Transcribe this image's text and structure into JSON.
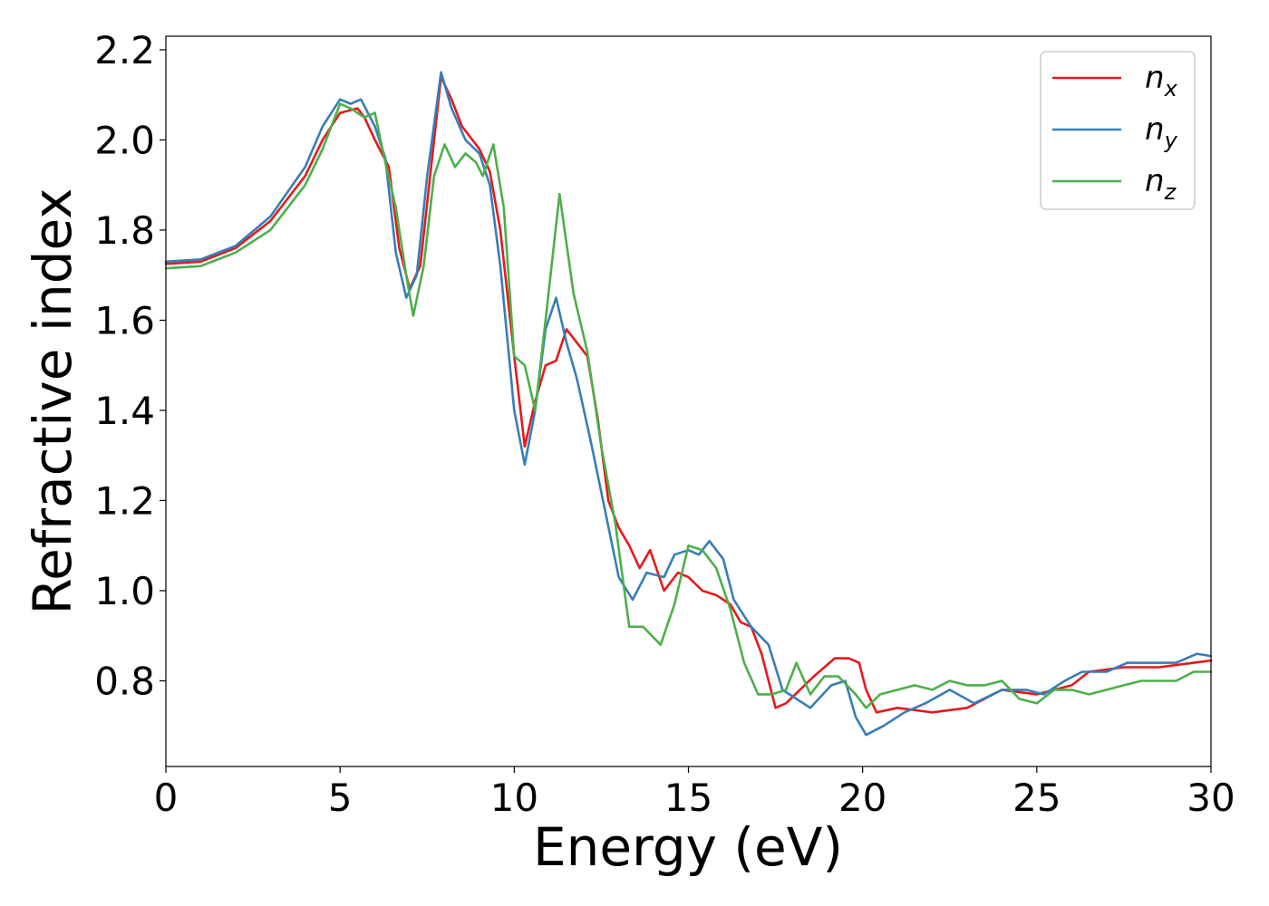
{
  "chart_data": {
    "type": "line",
    "xlabel": "Energy (eV)",
    "ylabel": "Refractive index",
    "xlim": [
      0,
      30
    ],
    "ylim": [
      0.61,
      2.23
    ],
    "xticks": [
      "0",
      "5",
      "10",
      "15",
      "20",
      "25",
      "30"
    ],
    "yticks": [
      "0.8",
      "1.0",
      "1.2",
      "1.4",
      "1.6",
      "1.8",
      "2.0",
      "2.2"
    ],
    "grid": false,
    "legend_position": "top-right",
    "series": [
      {
        "name": "n",
        "subscript": "x",
        "color": "#e41a1c",
        "points": [
          [
            0,
            1.725
          ],
          [
            1,
            1.73
          ],
          [
            2,
            1.76
          ],
          [
            3,
            1.82
          ],
          [
            4,
            1.92
          ],
          [
            4.5,
            2.0
          ],
          [
            5,
            2.06
          ],
          [
            5.5,
            2.07
          ],
          [
            5.7,
            2.05
          ],
          [
            6,
            2.0
          ],
          [
            6.4,
            1.94
          ],
          [
            6.7,
            1.76
          ],
          [
            7,
            1.67
          ],
          [
            7.3,
            1.72
          ],
          [
            7.6,
            1.93
          ],
          [
            7.9,
            2.14
          ],
          [
            8.2,
            2.09
          ],
          [
            8.5,
            2.03
          ],
          [
            9,
            1.98
          ],
          [
            9.3,
            1.93
          ],
          [
            9.6,
            1.8
          ],
          [
            10,
            1.52
          ],
          [
            10.3,
            1.32
          ],
          [
            10.6,
            1.42
          ],
          [
            10.9,
            1.5
          ],
          [
            11.2,
            1.51
          ],
          [
            11.5,
            1.58
          ],
          [
            11.8,
            1.55
          ],
          [
            12.1,
            1.52
          ],
          [
            12.4,
            1.38
          ],
          [
            12.7,
            1.2
          ],
          [
            13,
            1.14
          ],
          [
            13.3,
            1.1
          ],
          [
            13.6,
            1.05
          ],
          [
            13.9,
            1.09
          ],
          [
            14.3,
            1.0
          ],
          [
            14.7,
            1.04
          ],
          [
            15,
            1.03
          ],
          [
            15.4,
            1.0
          ],
          [
            15.8,
            0.99
          ],
          [
            16.2,
            0.97
          ],
          [
            16.5,
            0.93
          ],
          [
            16.8,
            0.92
          ],
          [
            17.1,
            0.86
          ],
          [
            17.5,
            0.74
          ],
          [
            17.8,
            0.75
          ],
          [
            18.2,
            0.78
          ],
          [
            18.6,
            0.81
          ],
          [
            19.2,
            0.85
          ],
          [
            19.6,
            0.85
          ],
          [
            19.9,
            0.84
          ],
          [
            20.1,
            0.78
          ],
          [
            20.4,
            0.73
          ],
          [
            21,
            0.74
          ],
          [
            22,
            0.73
          ],
          [
            23,
            0.74
          ],
          [
            24,
            0.78
          ],
          [
            25,
            0.77
          ],
          [
            26,
            0.79
          ],
          [
            26.5,
            0.82
          ],
          [
            27.5,
            0.83
          ],
          [
            28.5,
            0.83
          ],
          [
            29.5,
            0.84
          ],
          [
            30,
            0.845
          ]
        ]
      },
      {
        "name": "n",
        "subscript": "y",
        "color": "#377eb8",
        "points": [
          [
            0,
            1.73
          ],
          [
            1,
            1.735
          ],
          [
            2,
            1.765
          ],
          [
            3,
            1.83
          ],
          [
            4,
            1.94
          ],
          [
            4.5,
            2.03
          ],
          [
            5,
            2.09
          ],
          [
            5.3,
            2.08
          ],
          [
            5.6,
            2.09
          ],
          [
            6,
            2.03
          ],
          [
            6.3,
            1.96
          ],
          [
            6.6,
            1.75
          ],
          [
            6.9,
            1.65
          ],
          [
            7.2,
            1.7
          ],
          [
            7.5,
            1.92
          ],
          [
            7.9,
            2.15
          ],
          [
            8.2,
            2.07
          ],
          [
            8.6,
            2.0
          ],
          [
            9,
            1.97
          ],
          [
            9.3,
            1.9
          ],
          [
            9.6,
            1.72
          ],
          [
            10,
            1.4
          ],
          [
            10.3,
            1.28
          ],
          [
            10.6,
            1.4
          ],
          [
            10.9,
            1.58
          ],
          [
            11.2,
            1.65
          ],
          [
            11.5,
            1.55
          ],
          [
            11.8,
            1.47
          ],
          [
            12.2,
            1.33
          ],
          [
            12.6,
            1.18
          ],
          [
            13,
            1.03
          ],
          [
            13.4,
            0.98
          ],
          [
            13.8,
            1.04
          ],
          [
            14.3,
            1.03
          ],
          [
            14.6,
            1.08
          ],
          [
            15,
            1.09
          ],
          [
            15.3,
            1.08
          ],
          [
            15.6,
            1.11
          ],
          [
            16,
            1.07
          ],
          [
            16.3,
            0.98
          ],
          [
            16.8,
            0.92
          ],
          [
            17.3,
            0.88
          ],
          [
            17.7,
            0.78
          ],
          [
            18.1,
            0.76
          ],
          [
            18.5,
            0.74
          ],
          [
            19.1,
            0.79
          ],
          [
            19.5,
            0.8
          ],
          [
            19.8,
            0.72
          ],
          [
            20.1,
            0.68
          ],
          [
            20.6,
            0.7
          ],
          [
            21.2,
            0.73
          ],
          [
            21.8,
            0.75
          ],
          [
            22.5,
            0.78
          ],
          [
            23.2,
            0.75
          ],
          [
            24,
            0.78
          ],
          [
            24.7,
            0.78
          ],
          [
            25.2,
            0.77
          ],
          [
            25.8,
            0.8
          ],
          [
            26.3,
            0.82
          ],
          [
            27,
            0.82
          ],
          [
            27.6,
            0.84
          ],
          [
            28.2,
            0.84
          ],
          [
            29,
            0.84
          ],
          [
            29.6,
            0.86
          ],
          [
            30,
            0.855
          ]
        ]
      },
      {
        "name": "n",
        "subscript": "z",
        "color": "#4daf4a",
        "points": [
          [
            0,
            1.715
          ],
          [
            1,
            1.72
          ],
          [
            2,
            1.75
          ],
          [
            3,
            1.8
          ],
          [
            4,
            1.9
          ],
          [
            4.5,
            1.98
          ],
          [
            5,
            2.08
          ],
          [
            5.3,
            2.07
          ],
          [
            5.7,
            2.05
          ],
          [
            6,
            2.06
          ],
          [
            6.3,
            1.95
          ],
          [
            6.6,
            1.85
          ],
          [
            6.9,
            1.7
          ],
          [
            7.1,
            1.61
          ],
          [
            7.4,
            1.72
          ],
          [
            7.7,
            1.92
          ],
          [
            8,
            1.99
          ],
          [
            8.3,
            1.94
          ],
          [
            8.6,
            1.97
          ],
          [
            8.9,
            1.95
          ],
          [
            9.1,
            1.92
          ],
          [
            9.4,
            1.99
          ],
          [
            9.7,
            1.85
          ],
          [
            10,
            1.52
          ],
          [
            10.3,
            1.5
          ],
          [
            10.6,
            1.4
          ],
          [
            10.9,
            1.6
          ],
          [
            11.3,
            1.88
          ],
          [
            11.7,
            1.66
          ],
          [
            12.1,
            1.53
          ],
          [
            12.5,
            1.32
          ],
          [
            12.9,
            1.15
          ],
          [
            13.3,
            0.92
          ],
          [
            13.7,
            0.92
          ],
          [
            14.2,
            0.88
          ],
          [
            14.6,
            0.97
          ],
          [
            15,
            1.1
          ],
          [
            15.4,
            1.09
          ],
          [
            15.8,
            1.05
          ],
          [
            16.2,
            0.96
          ],
          [
            16.6,
            0.84
          ],
          [
            17,
            0.77
          ],
          [
            17.4,
            0.77
          ],
          [
            17.8,
            0.78
          ],
          [
            18.1,
            0.84
          ],
          [
            18.5,
            0.77
          ],
          [
            18.9,
            0.81
          ],
          [
            19.3,
            0.81
          ],
          [
            19.8,
            0.77
          ],
          [
            20.1,
            0.74
          ],
          [
            20.5,
            0.77
          ],
          [
            21,
            0.78
          ],
          [
            21.5,
            0.79
          ],
          [
            22,
            0.78
          ],
          [
            22.5,
            0.8
          ],
          [
            23,
            0.79
          ],
          [
            23.5,
            0.79
          ],
          [
            24,
            0.8
          ],
          [
            24.5,
            0.76
          ],
          [
            25,
            0.75
          ],
          [
            25.5,
            0.78
          ],
          [
            26,
            0.78
          ],
          [
            26.5,
            0.77
          ],
          [
            27,
            0.78
          ],
          [
            27.5,
            0.79
          ],
          [
            28,
            0.8
          ],
          [
            28.5,
            0.8
          ],
          [
            29,
            0.8
          ],
          [
            29.5,
            0.82
          ],
          [
            30,
            0.82
          ]
        ]
      }
    ]
  }
}
